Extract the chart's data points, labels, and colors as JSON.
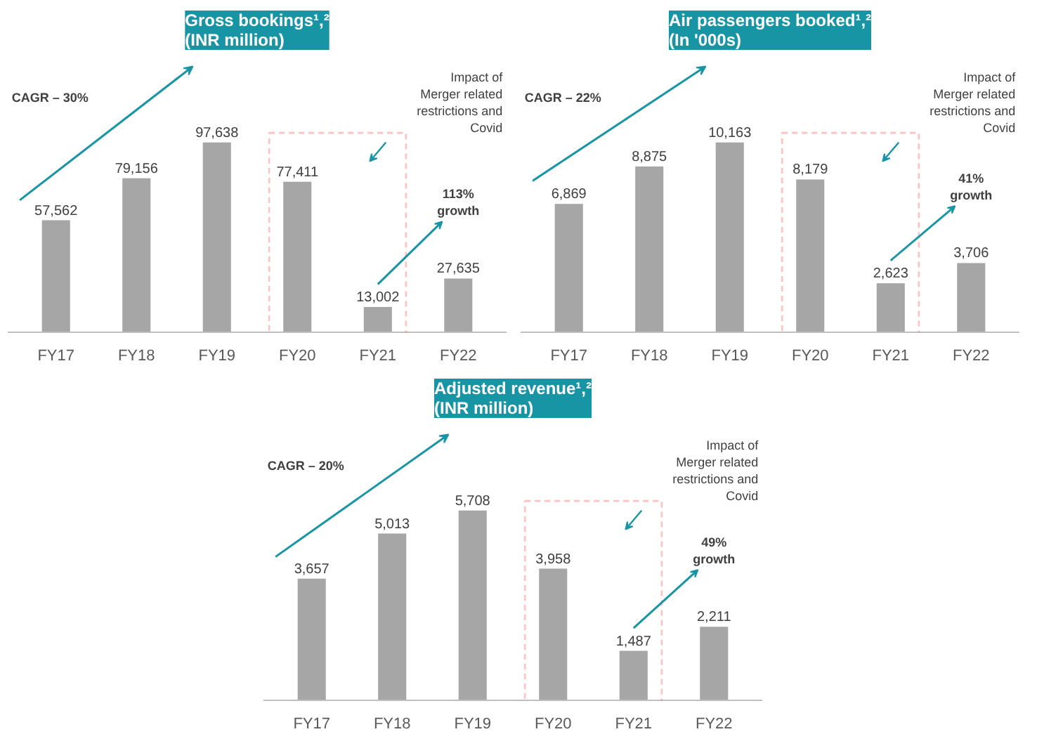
{
  "chart_data": [
    {
      "type": "bar",
      "title": "Gross bookings¹,²\n(INR million)",
      "categories": [
        "FY17",
        "FY18",
        "FY19",
        "FY20",
        "FY21",
        "FY22"
      ],
      "values": [
        57562,
        79156,
        97638,
        77411,
        13002,
        27635
      ],
      "value_labels": [
        "57,562",
        "79,156",
        "97,638",
        "77,411",
        "13,002",
        "27,635"
      ],
      "color": "#a6a6a6",
      "annotations": [
        "CAGR – 30%",
        "Impact of\nMerger related\nrestrictions and\nCovid",
        "113%\ngrowth"
      ],
      "grid": false
    },
    {
      "type": "bar",
      "title": "Air passengers booked¹,²\n(In '000s)",
      "categories": [
        "FY17",
        "FY18",
        "FY19",
        "FY20",
        "FY21",
        "FY22"
      ],
      "values": [
        6869,
        8875,
        10163,
        8179,
        2623,
        3706
      ],
      "value_labels": [
        "6,869",
        "8,875",
        "10,163",
        "8,179",
        "2,623",
        "3,706"
      ],
      "color": "#a6a6a6",
      "annotations": [
        "CAGR – 22%",
        "Impact of\nMerger related\nrestrictions and\nCovid",
        "41%\ngrowth"
      ],
      "grid": false
    },
    {
      "type": "bar",
      "title": "Adjusted revenue¹,²\n(INR million)",
      "categories": [
        "FY17",
        "FY18",
        "FY19",
        "FY20",
        "FY21",
        "FY22"
      ],
      "values": [
        3657,
        5013,
        5708,
        3958,
        1487,
        2211
      ],
      "value_labels": [
        "3,657",
        "5,013",
        "5,708",
        "3,958",
        "1,487",
        "2,211"
      ],
      "color": "#a6a6a6",
      "annotations": [
        "CAGR – 20%",
        "Impact of\nMerger related\nrestrictions and\nCovid",
        "49%\ngrowth"
      ],
      "grid": false
    }
  ]
}
